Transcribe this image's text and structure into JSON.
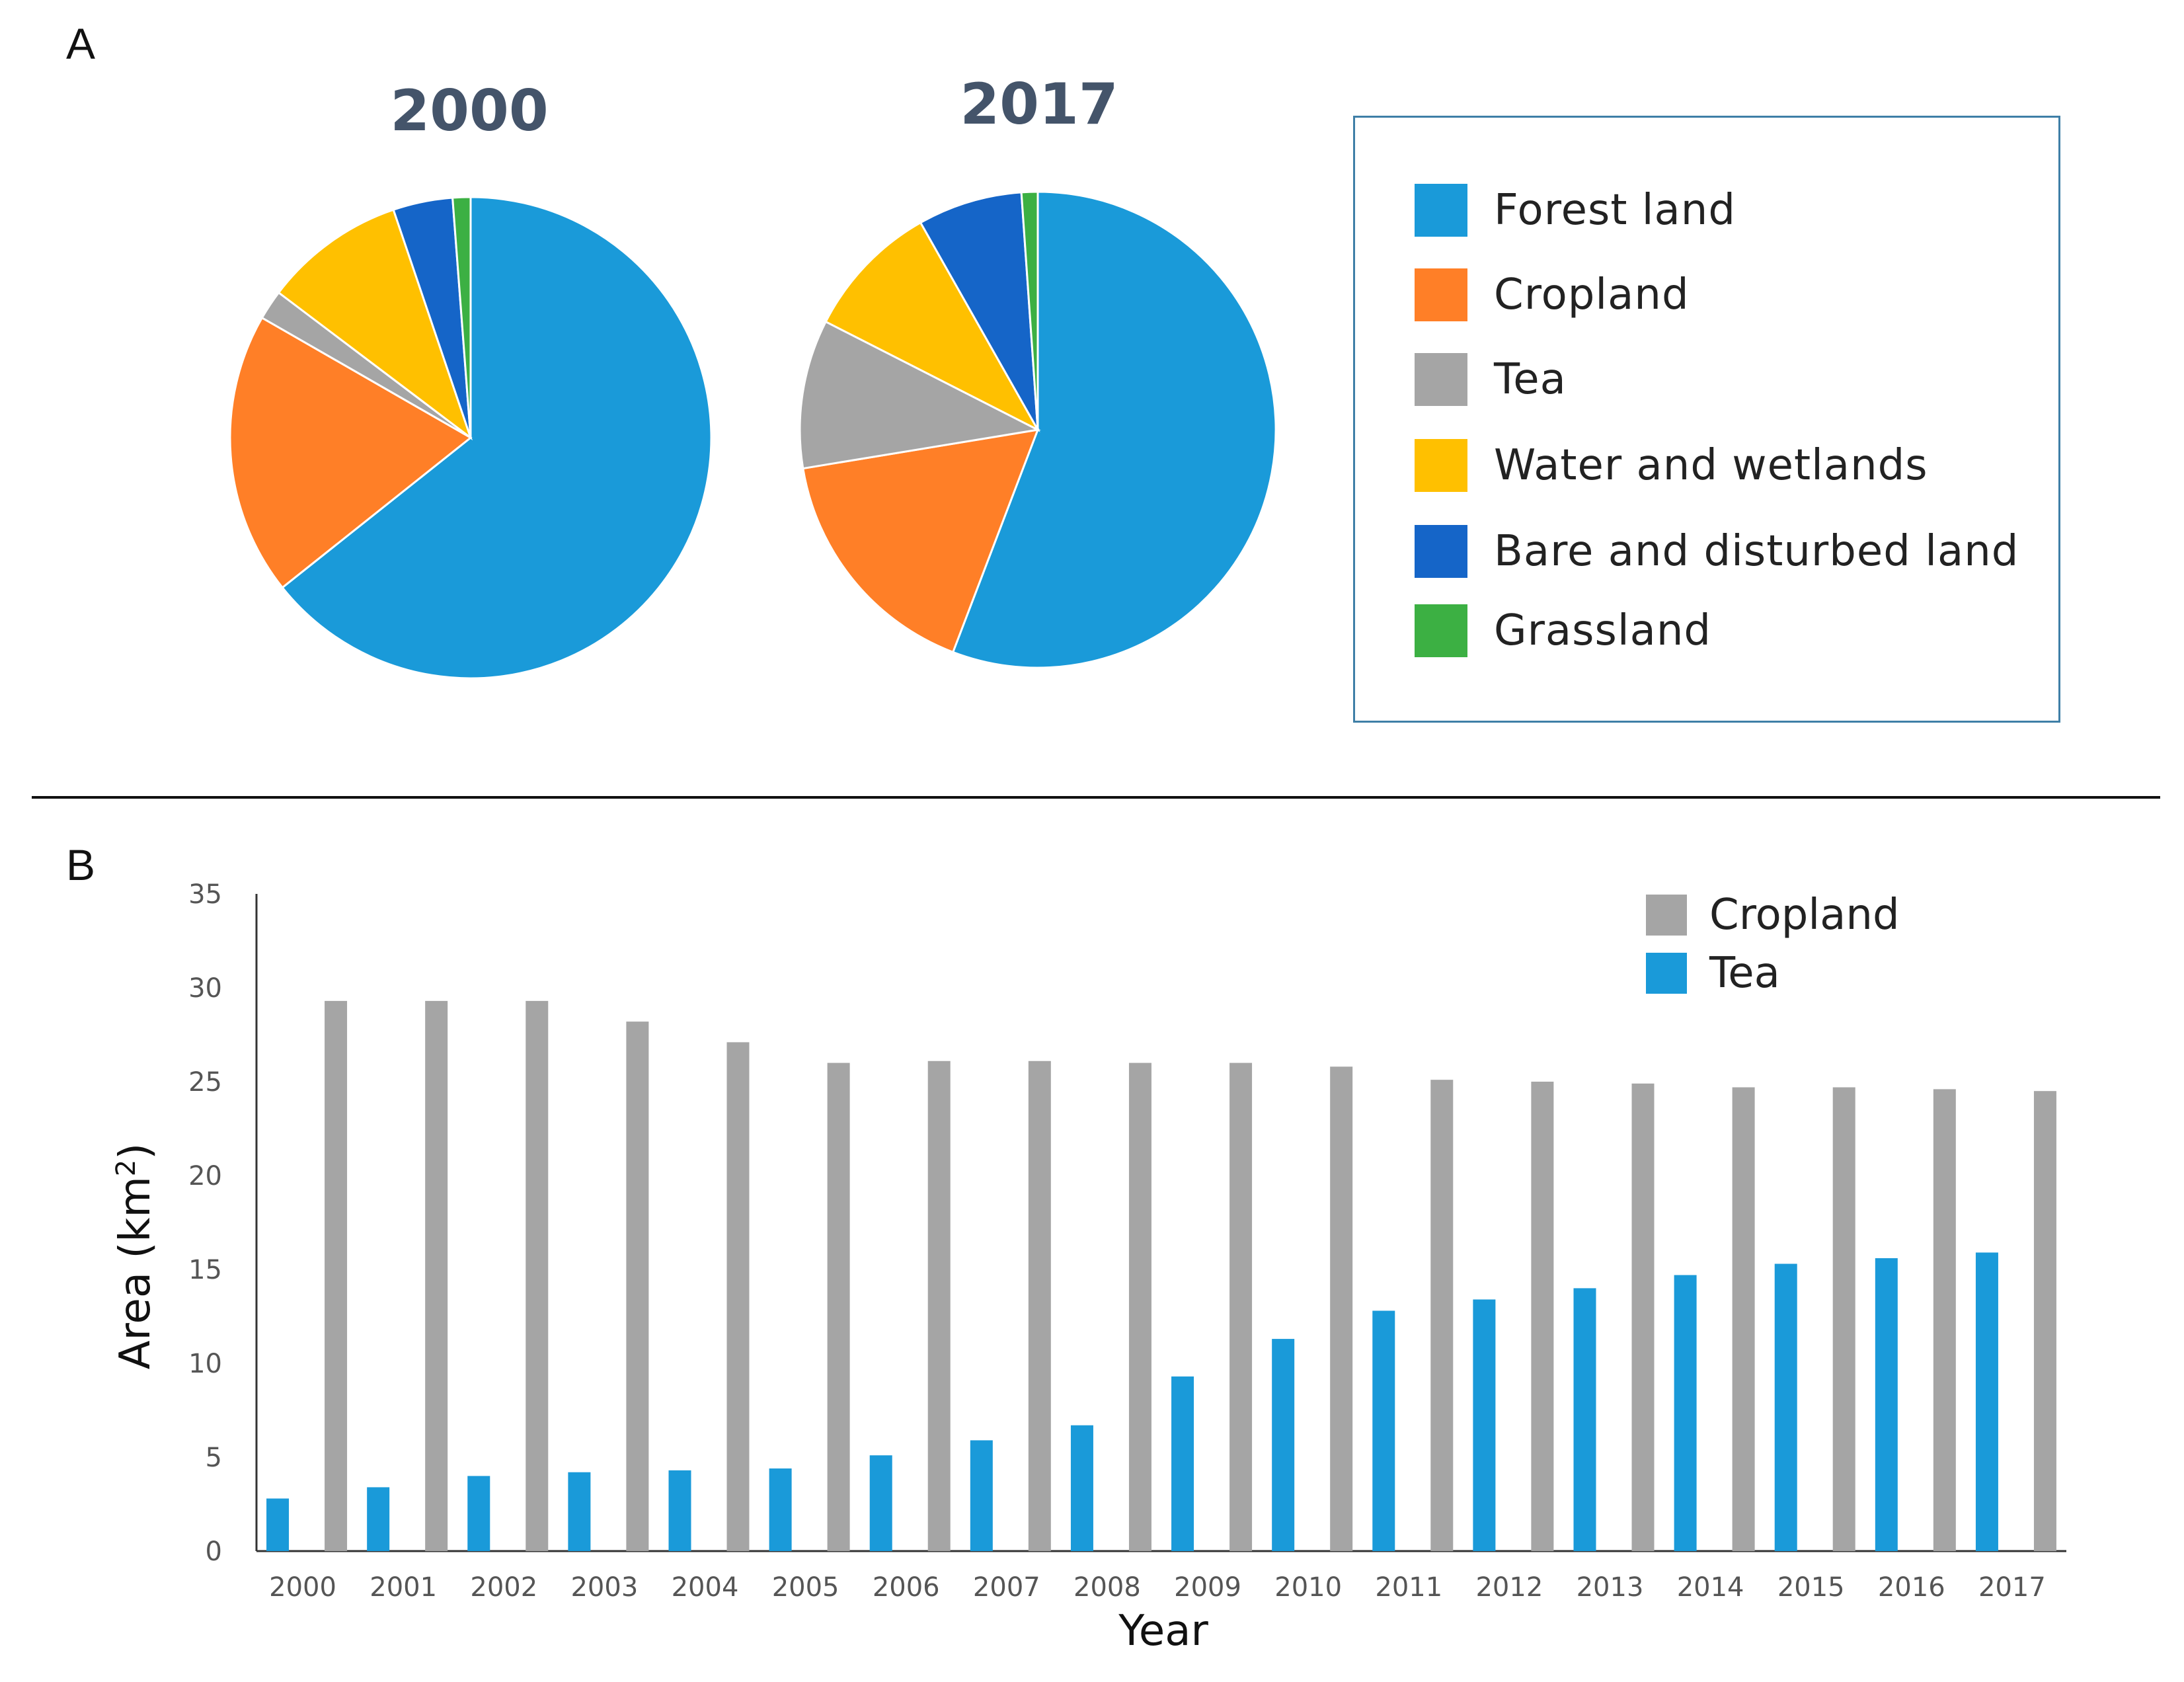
{
  "panels": {
    "a_label": "A",
    "b_label": "B"
  },
  "colors": {
    "forest": "#1a9ad9",
    "cropland": "#ff7f27",
    "tea": "#a5a5a5",
    "water": "#ffc000",
    "bare": "#1565c8",
    "grassland": "#3cb043",
    "cropland_bar": "#a5a5a5",
    "tea_bar": "#1a9ad9"
  },
  "chart_data": [
    {
      "type": "pie",
      "title": "2000",
      "categories": [
        "Forest land",
        "Cropland",
        "Tea",
        "Water and wetlands",
        "Bare and disturbed land",
        "Grassland"
      ],
      "values": [
        64.3,
        19.0,
        2.0,
        9.5,
        4.0,
        1.2
      ]
    },
    {
      "type": "pie",
      "title": "2017",
      "categories": [
        "Forest land",
        "Cropland",
        "Tea",
        "Water and wetlands",
        "Bare and disturbed land",
        "Grassland"
      ],
      "values": [
        55.8,
        16.6,
        10.1,
        9.3,
        7.1,
        1.1
      ]
    },
    {
      "type": "bar",
      "title": "",
      "xlabel": "Year",
      "ylabel": "Area (km",
      "ylabel_sup": "2",
      "ylabel_tail": ")",
      "ylim": [
        0,
        35
      ],
      "yticks": [
        "0",
        "5",
        "10",
        "15",
        "20",
        "25",
        "30",
        "35"
      ],
      "categories": [
        "2000",
        "2001",
        "2002",
        "2003",
        "2004",
        "2005",
        "2006",
        "2007",
        "2008",
        "2009",
        "2010",
        "2011",
        "2012",
        "2013",
        "2014",
        "2015",
        "2016",
        "2017"
      ],
      "series": [
        {
          "name": "Cropland",
          "values": [
            29.3,
            29.3,
            29.3,
            28.2,
            27.1,
            26.0,
            26.1,
            26.1,
            26.0,
            26.0,
            25.8,
            25.1,
            25.0,
            24.9,
            24.7,
            24.7,
            24.6,
            24.5
          ]
        },
        {
          "name": "Tea",
          "values": [
            2.8,
            3.4,
            4.0,
            4.2,
            4.3,
            4.4,
            5.1,
            5.9,
            6.7,
            9.3,
            11.3,
            12.8,
            13.4,
            14.0,
            14.7,
            15.3,
            15.6,
            15.9
          ]
        }
      ]
    }
  ]
}
